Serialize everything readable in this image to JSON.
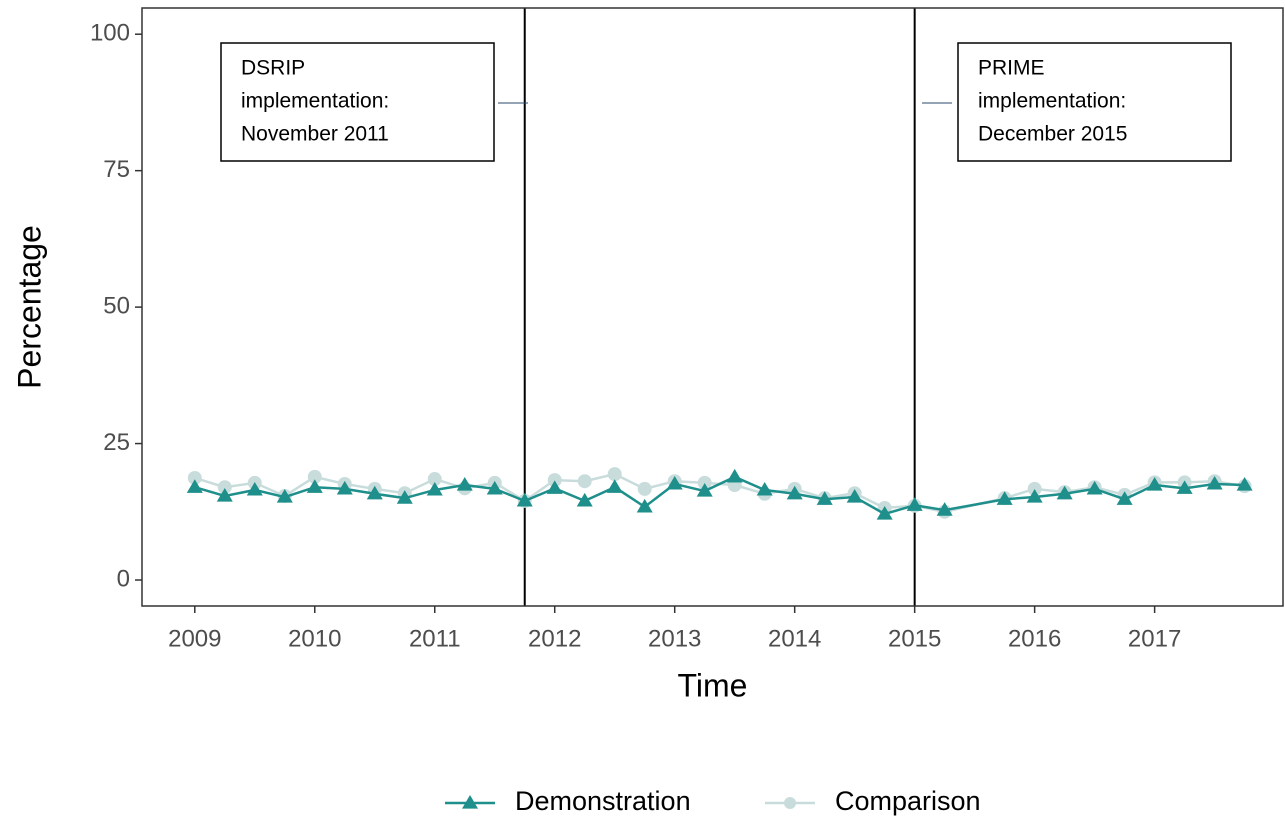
{
  "chart_data": {
    "type": "line",
    "x_label": "Time",
    "y_label": "Percentage",
    "x": [
      2009,
      2009.25,
      2009.5,
      2009.75,
      2010,
      2010.25,
      2010.5,
      2010.75,
      2011,
      2011.25,
      2011.5,
      2011.75,
      2012,
      2012.25,
      2012.5,
      2012.75,
      2013,
      2013.25,
      2013.5,
      2013.75,
      2014,
      2014.25,
      2014.5,
      2014.75,
      2015,
      2015.25,
      2015.75,
      2016,
      2016.25,
      2016.5,
      2016.75,
      2017,
      2017.25,
      2017.5,
      2017.75
    ],
    "series": [
      {
        "name": "Demonstration",
        "color": "#1f8f8c",
        "marker": "triangle",
        "values": [
          17.0,
          15.4,
          16.5,
          15.2,
          17.0,
          16.7,
          15.8,
          15.0,
          16.5,
          17.4,
          16.7,
          14.5,
          16.8,
          14.5,
          17.0,
          13.4,
          17.6,
          16.3,
          18.9,
          16.5,
          15.8,
          14.8,
          15.2,
          12.1,
          13.7,
          12.8,
          14.8,
          15.2,
          15.8,
          16.7,
          14.8,
          17.4,
          16.8,
          17.6,
          17.4
        ]
      },
      {
        "name": "Comparison",
        "color": "#c9dcdc",
        "marker": "circle",
        "values": [
          18.7,
          17.0,
          17.8,
          15.4,
          18.9,
          17.6,
          16.7,
          15.9,
          18.5,
          16.8,
          17.8,
          14.5,
          18.3,
          18.1,
          19.4,
          16.7,
          18.1,
          17.8,
          17.4,
          15.8,
          16.7,
          15.0,
          15.9,
          13.2,
          13.6,
          12.5,
          15.0,
          16.7,
          16.1,
          17.0,
          15.6,
          17.9,
          17.9,
          18.1,
          17.2
        ]
      }
    ],
    "xlim": [
      2008.56,
      2018.07
    ],
    "xticks": [
      2009,
      2010,
      2011,
      2012,
      2013,
      2014,
      2015,
      2016,
      2017
    ],
    "ylim": [
      -4.76,
      104.8
    ],
    "yticks": [
      0,
      25,
      50,
      75,
      100
    ],
    "vlines": [
      2011.75,
      2015
    ],
    "annotations": [
      {
        "lines": [
          "DSRIP",
          "implementation:",
          "November 2011"
        ]
      },
      {
        "lines": [
          "PRIME",
          "implementation:",
          "December 2015"
        ]
      }
    ],
    "legend": "bottom"
  }
}
